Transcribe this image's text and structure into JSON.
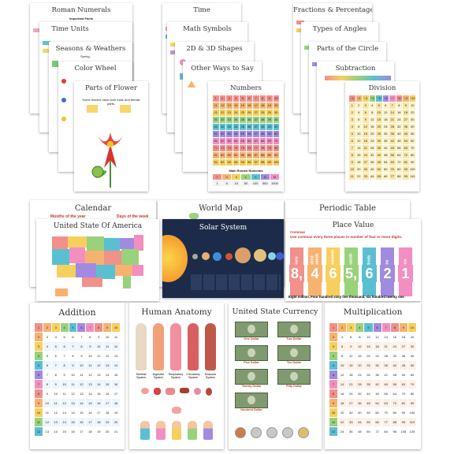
{
  "posters": {
    "roman_numerals": {
      "title": "Roman Numerals",
      "subtitle": "Important Facts"
    },
    "time_units": {
      "title": "Time Units"
    },
    "seasons": {
      "title": "Seasons & Weathers",
      "label": "Spring"
    },
    "color_wheel": {
      "title": "Color Wheel"
    },
    "parts_of_flower": {
      "title": "Parts of Flower",
      "text": "Some flowers have both male and female parts."
    },
    "time": {
      "title": "Time"
    },
    "math_symbols": {
      "title": "Math Symbols"
    },
    "shapes": {
      "title": "2D & 3D Shapes"
    },
    "ways_to_say": {
      "title": "Other Ways to Say"
    },
    "numbers": {
      "title": "Numbers",
      "footer": "Main Roman Numerals",
      "roman": [
        "I",
        "V",
        "X",
        "L",
        "C",
        "D",
        "M"
      ],
      "arabic": [
        "1",
        "5",
        "10",
        "50",
        "100",
        "500",
        "1000"
      ]
    },
    "fractions": {
      "title": "Fractions & Percentage"
    },
    "angles": {
      "title": "Types of Angles"
    },
    "circle": {
      "title": "Parts of the Circle"
    },
    "subtraction": {
      "title": "Subtraction"
    },
    "division": {
      "title": "Division"
    },
    "calendar": {
      "title": "Calendar",
      "months": "Months of the year",
      "days": "Days of the week"
    },
    "world_map": {
      "title": "World Map"
    },
    "periodic_table": {
      "title": "Periodic Table"
    },
    "usa": {
      "title": "United State Of America"
    },
    "solar_system": {
      "title": "Solar System"
    },
    "place_value": {
      "title": "Place Value",
      "commas": "Commas",
      "rule": "Use commas every three places in number of four or more digits.",
      "labels": [
        "Millions",
        "Hundred Thousands",
        "Ten Thousands",
        "Thousands",
        "Hundreds",
        "Tens",
        "Ones"
      ],
      "digits": [
        "8",
        "4",
        "6",
        "5",
        "6",
        "2",
        "1"
      ],
      "words": "Eight million, Four hundred sixty five thousand, six hundred twenty one"
    },
    "addition": {
      "title": "Addition"
    },
    "anatomy": {
      "title": "Human Anatomy",
      "systems": [
        "Skeletal System",
        "Digestive System",
        "Respiratory System",
        "Circulatory System",
        "Muscular System"
      ]
    },
    "currency": {
      "title": "United State Currency",
      "bills": [
        "One Dollar",
        "Two Dollar",
        "Five Dollar",
        "Ten Dollar",
        "Twenty Dollar",
        "Fifty Dollar",
        "Hundred Dollar"
      ]
    },
    "multiplication": {
      "title": "Multiplication"
    }
  },
  "colors": {
    "pink": "#f4a6b8",
    "teal": "#5cc8c8",
    "yellow": "#f7d66a",
    "purple": "#b79ad6",
    "blue": "#7fb5e6",
    "space": "#1c2b4a",
    "pv": [
      "#f2908a",
      "#f6b36f",
      "#f7cf5e",
      "#9ad27c",
      "#5bbfd2",
      "#a18be0",
      "#f28fc0"
    ]
  }
}
